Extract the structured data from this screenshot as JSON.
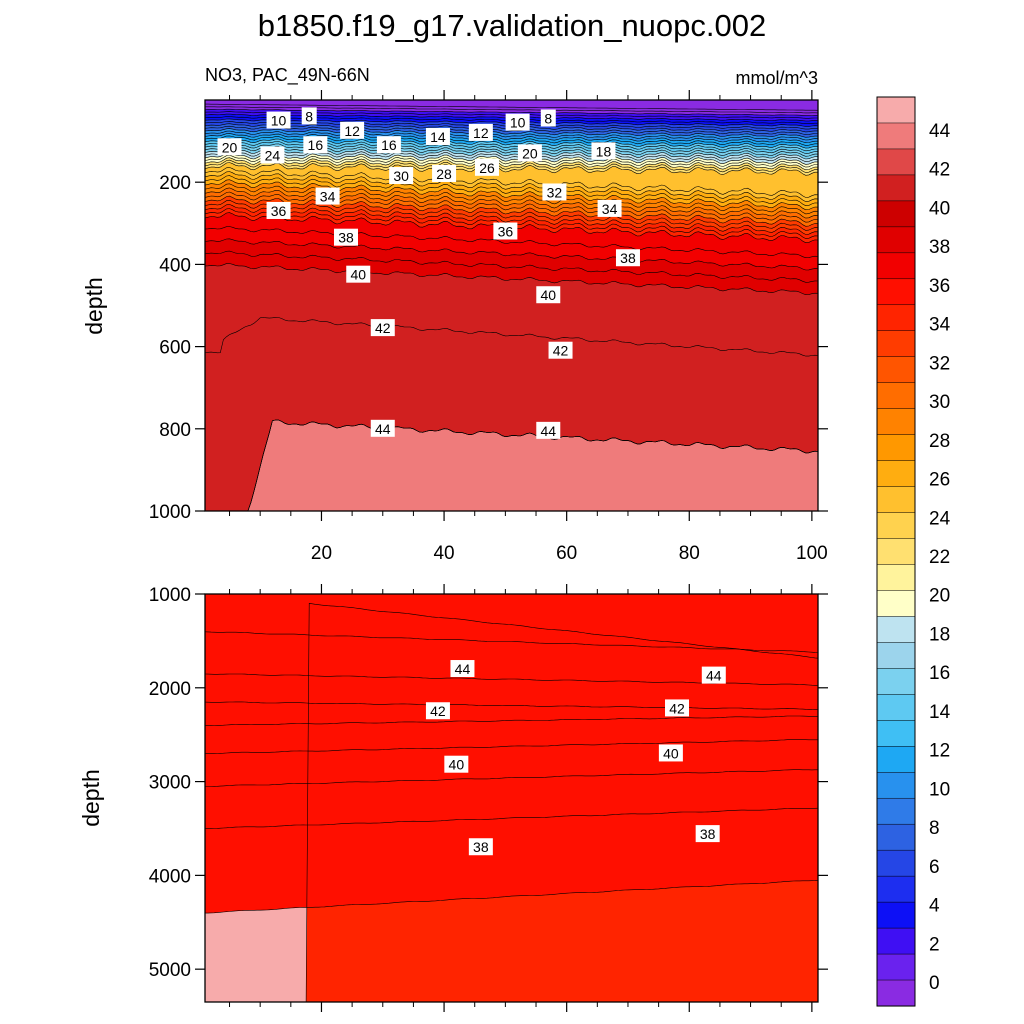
{
  "title": "b1850.f19_g17.validation_nuopc.002",
  "chart_data": {
    "type": "contour",
    "variable_label": "NO3, PAC_49N-66N",
    "units_label": "mmol/m^3",
    "colorbar": {
      "levels": [
        0,
        2,
        4,
        6,
        8,
        10,
        12,
        14,
        16,
        18,
        20,
        22,
        24,
        26,
        28,
        30,
        32,
        34,
        36,
        38,
        40,
        42,
        44
      ],
      "tick_labels": [
        "0",
        "2",
        "4",
        "6",
        "8",
        "10",
        "12",
        "14",
        "16",
        "18",
        "20",
        "22",
        "24",
        "26",
        "28",
        "30",
        "32",
        "34",
        "36",
        "38",
        "40",
        "42",
        "44"
      ],
      "colors": [
        "#8a2be2",
        "#6a22ee",
        "#3f0ff3",
        "#0d10f6",
        "#1d2ef0",
        "#2546e6",
        "#2d62e2",
        "#2f7be8",
        "#2891ee",
        "#1ea8f3",
        "#3fbff4",
        "#5ec9f2",
        "#7bd1ef",
        "#9cd4ec",
        "#bee3f0",
        "#ffffc8",
        "#fff39c",
        "#ffe070",
        "#ffd24e",
        "#ffc02e",
        "#ffad10",
        "#ff9800",
        "#ff8200",
        "#ff6d00",
        "#ff5500",
        "#ff3c00",
        "#ff2400",
        "#ff0f00",
        "#f20000",
        "#e00000",
        "#cd0000",
        "#d12020",
        "#e04848",
        "#ef7b7b",
        "#f7abab"
      ]
    },
    "x_ticks": [
      "20",
      "40",
      "60",
      "80",
      "100"
    ],
    "upper_panel": {
      "ylabel": "depth",
      "y_ticks": [
        "200",
        "400",
        "600",
        "800",
        "1000"
      ],
      "ylim": [
        1000,
        0
      ],
      "xlim": [
        1,
        101
      ],
      "contour_labels": [
        {
          "text": "8",
          "x": 18,
          "depth": 40
        },
        {
          "text": "10",
          "x": 13,
          "depth": 50
        },
        {
          "text": "8",
          "x": 57,
          "depth": 45
        },
        {
          "text": "10",
          "x": 52,
          "depth": 55
        },
        {
          "text": "12",
          "x": 25,
          "depth": 75
        },
        {
          "text": "12",
          "x": 46,
          "depth": 80
        },
        {
          "text": "14",
          "x": 39,
          "depth": 90
        },
        {
          "text": "16",
          "x": 19,
          "depth": 110
        },
        {
          "text": "16",
          "x": 31,
          "depth": 110
        },
        {
          "text": "18",
          "x": 66,
          "depth": 125
        },
        {
          "text": "20",
          "x": 5,
          "depth": 115
        },
        {
          "text": "20",
          "x": 54,
          "depth": 130
        },
        {
          "text": "24",
          "x": 12,
          "depth": 135
        },
        {
          "text": "26",
          "x": 47,
          "depth": 165
        },
        {
          "text": "28",
          "x": 40,
          "depth": 180
        },
        {
          "text": "30",
          "x": 33,
          "depth": 185
        },
        {
          "text": "32",
          "x": 58,
          "depth": 225
        },
        {
          "text": "34",
          "x": 21,
          "depth": 235
        },
        {
          "text": "34",
          "x": 67,
          "depth": 265
        },
        {
          "text": "36",
          "x": 13,
          "depth": 270
        },
        {
          "text": "36",
          "x": 50,
          "depth": 320
        },
        {
          "text": "38",
          "x": 24,
          "depth": 335
        },
        {
          "text": "38",
          "x": 70,
          "depth": 385
        },
        {
          "text": "40",
          "x": 26,
          "depth": 425
        },
        {
          "text": "40",
          "x": 57,
          "depth": 475
        },
        {
          "text": "42",
          "x": 30,
          "depth": 555
        },
        {
          "text": "42",
          "x": 59,
          "depth": 610
        },
        {
          "text": "44",
          "x": 30,
          "depth": 800
        },
        {
          "text": "44",
          "x": 57,
          "depth": 805
        }
      ]
    },
    "lower_panel": {
      "ylabel": "depth",
      "y_ticks": [
        "1000",
        "2000",
        "3000",
        "4000",
        "5000"
      ],
      "ylim": [
        5350,
        1000
      ],
      "xlim": [
        1,
        101
      ],
      "contour_labels": [
        {
          "text": "44",
          "x": 43,
          "depth": 1800
        },
        {
          "text": "44",
          "x": 84,
          "depth": 1870
        },
        {
          "text": "42",
          "x": 39,
          "depth": 2250
        },
        {
          "text": "42",
          "x": 78,
          "depth": 2220
        },
        {
          "text": "40",
          "x": 42,
          "depth": 2820
        },
        {
          "text": "40",
          "x": 77,
          "depth": 2700
        },
        {
          "text": "38",
          "x": 46,
          "depth": 3700
        },
        {
          "text": "38",
          "x": 83,
          "depth": 3560
        }
      ]
    }
  }
}
